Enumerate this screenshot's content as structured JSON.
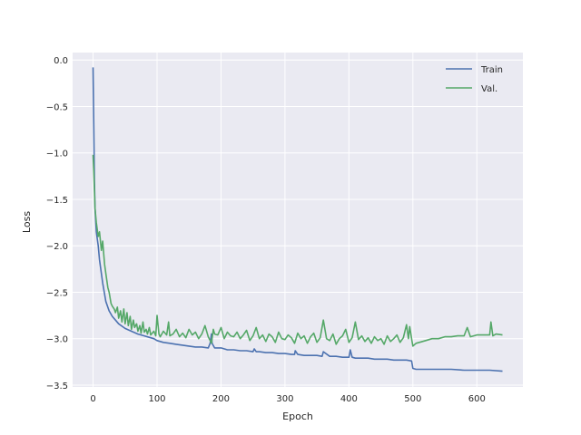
{
  "chart_data": {
    "type": "line",
    "title": "",
    "xlabel": "Epoch",
    "ylabel": "Loss",
    "xlim": [
      -32,
      672
    ],
    "ylim": [
      -3.52,
      0.08
    ],
    "xticks": [
      "0",
      "100",
      "200",
      "300",
      "400",
      "500",
      "600"
    ],
    "xtick_values": [
      0,
      100,
      200,
      300,
      400,
      500,
      600
    ],
    "yticks": [
      "0.0",
      "−0.5",
      "−1.0",
      "−1.5",
      "−2.0",
      "−2.5",
      "−3.0",
      "−3.5"
    ],
    "ytick_values": [
      0.0,
      -0.5,
      -1.0,
      -1.5,
      -2.0,
      -2.5,
      -3.0,
      -3.5
    ],
    "grid": true,
    "style": "seaborn-darkgrid",
    "legend_position": "top-right",
    "series": [
      {
        "name": "Train",
        "color": "#4c72b0",
        "x": [
          0,
          1,
          2,
          3,
          5,
          8,
          10,
          15,
          20,
          25,
          30,
          35,
          40,
          50,
          60,
          70,
          80,
          90,
          95,
          100,
          110,
          120,
          130,
          140,
          150,
          160,
          170,
          180,
          183,
          185,
          186,
          190,
          200,
          210,
          220,
          230,
          240,
          250,
          252,
          255,
          260,
          270,
          280,
          290,
          300,
          310,
          315,
          316,
          320,
          330,
          340,
          350,
          358,
          360,
          370,
          380,
          390,
          400,
          402,
          405,
          410,
          420,
          430,
          440,
          450,
          460,
          470,
          480,
          490,
          498,
          500,
          505,
          510,
          520,
          540,
          560,
          580,
          600,
          620,
          640
        ],
        "y": [
          -0.08,
          -0.7,
          -1.3,
          -1.6,
          -1.85,
          -2.0,
          -2.15,
          -2.4,
          -2.6,
          -2.7,
          -2.76,
          -2.8,
          -2.84,
          -2.89,
          -2.92,
          -2.95,
          -2.97,
          -2.99,
          -3.0,
          -3.02,
          -3.04,
          -3.05,
          -3.06,
          -3.07,
          -3.08,
          -3.09,
          -3.09,
          -3.1,
          -3.05,
          -2.95,
          -3.05,
          -3.1,
          -3.1,
          -3.12,
          -3.12,
          -3.13,
          -3.13,
          -3.14,
          -3.11,
          -3.14,
          -3.14,
          -3.15,
          -3.15,
          -3.16,
          -3.16,
          -3.17,
          -3.17,
          -3.13,
          -3.17,
          -3.18,
          -3.18,
          -3.18,
          -3.19,
          -3.14,
          -3.19,
          -3.19,
          -3.2,
          -3.2,
          -3.12,
          -3.2,
          -3.21,
          -3.21,
          -3.21,
          -3.22,
          -3.22,
          -3.22,
          -3.23,
          -3.23,
          -3.23,
          -3.24,
          -3.32,
          -3.33,
          -3.33,
          -3.33,
          -3.33,
          -3.33,
          -3.34,
          -3.34,
          -3.34,
          -3.35
        ]
      },
      {
        "name": "Val.",
        "color": "#55a868",
        "x": [
          0,
          1,
          2,
          3,
          5,
          8,
          10,
          13,
          15,
          18,
          20,
          23,
          25,
          28,
          30,
          33,
          35,
          38,
          40,
          43,
          45,
          48,
          50,
          53,
          55,
          58,
          60,
          63,
          65,
          68,
          70,
          73,
          75,
          78,
          80,
          83,
          85,
          88,
          90,
          95,
          98,
          100,
          103,
          105,
          110,
          115,
          118,
          120,
          125,
          130,
          135,
          140,
          145,
          150,
          155,
          160,
          165,
          170,
          175,
          180,
          183,
          185,
          188,
          190,
          195,
          200,
          205,
          210,
          215,
          220,
          225,
          230,
          235,
          240,
          245,
          250,
          255,
          260,
          265,
          270,
          275,
          280,
          285,
          290,
          295,
          300,
          305,
          310,
          315,
          320,
          325,
          330,
          335,
          340,
          345,
          350,
          355,
          360,
          365,
          370,
          375,
          380,
          385,
          390,
          395,
          400,
          405,
          410,
          415,
          420,
          425,
          430,
          435,
          440,
          445,
          450,
          455,
          460,
          465,
          470,
          475,
          480,
          485,
          490,
          493,
          495,
          498,
          500,
          505,
          510,
          520,
          530,
          540,
          550,
          560,
          570,
          580,
          585,
          590,
          600,
          610,
          620,
          622,
          625,
          630,
          640
        ],
        "y": [
          -1.02,
          -1.2,
          -1.4,
          -1.6,
          -1.75,
          -1.9,
          -1.85,
          -2.05,
          -1.95,
          -2.2,
          -2.3,
          -2.45,
          -2.5,
          -2.62,
          -2.65,
          -2.68,
          -2.72,
          -2.66,
          -2.78,
          -2.7,
          -2.82,
          -2.68,
          -2.84,
          -2.72,
          -2.86,
          -2.76,
          -2.9,
          -2.8,
          -2.88,
          -2.84,
          -2.92,
          -2.86,
          -2.94,
          -2.82,
          -2.93,
          -2.9,
          -2.95,
          -2.88,
          -2.96,
          -2.92,
          -2.97,
          -2.75,
          -2.95,
          -2.98,
          -2.92,
          -2.96,
          -2.82,
          -2.97,
          -2.95,
          -2.9,
          -2.98,
          -2.94,
          -2.99,
          -2.9,
          -2.96,
          -2.93,
          -3.0,
          -2.95,
          -2.86,
          -2.98,
          -3.02,
          -3.05,
          -2.9,
          -2.95,
          -2.96,
          -2.88,
          -3.0,
          -2.93,
          -2.97,
          -2.98,
          -2.93,
          -3.0,
          -2.96,
          -2.91,
          -3.02,
          -2.97,
          -2.88,
          -3.0,
          -2.96,
          -3.03,
          -2.95,
          -2.98,
          -3.04,
          -2.93,
          -3.0,
          -3.01,
          -2.96,
          -2.99,
          -3.05,
          -2.94,
          -3.0,
          -2.97,
          -3.05,
          -2.98,
          -2.94,
          -3.04,
          -2.99,
          -2.8,
          -3.0,
          -3.02,
          -2.95,
          -3.06,
          -3.0,
          -2.97,
          -2.9,
          -3.04,
          -2.99,
          -2.82,
          -3.01,
          -2.97,
          -3.03,
          -2.99,
          -3.05,
          -2.98,
          -3.02,
          -3.0,
          -3.06,
          -2.97,
          -3.03,
          -3.0,
          -2.96,
          -3.04,
          -2.99,
          -2.85,
          -3.0,
          -2.87,
          -3.0,
          -3.08,
          -3.05,
          -3.04,
          -3.02,
          -3.0,
          -3.0,
          -2.98,
          -2.98,
          -2.97,
          -2.97,
          -2.88,
          -2.98,
          -2.96,
          -2.96,
          -2.96,
          -2.82,
          -2.97,
          -2.95,
          -2.96
        ]
      }
    ]
  }
}
